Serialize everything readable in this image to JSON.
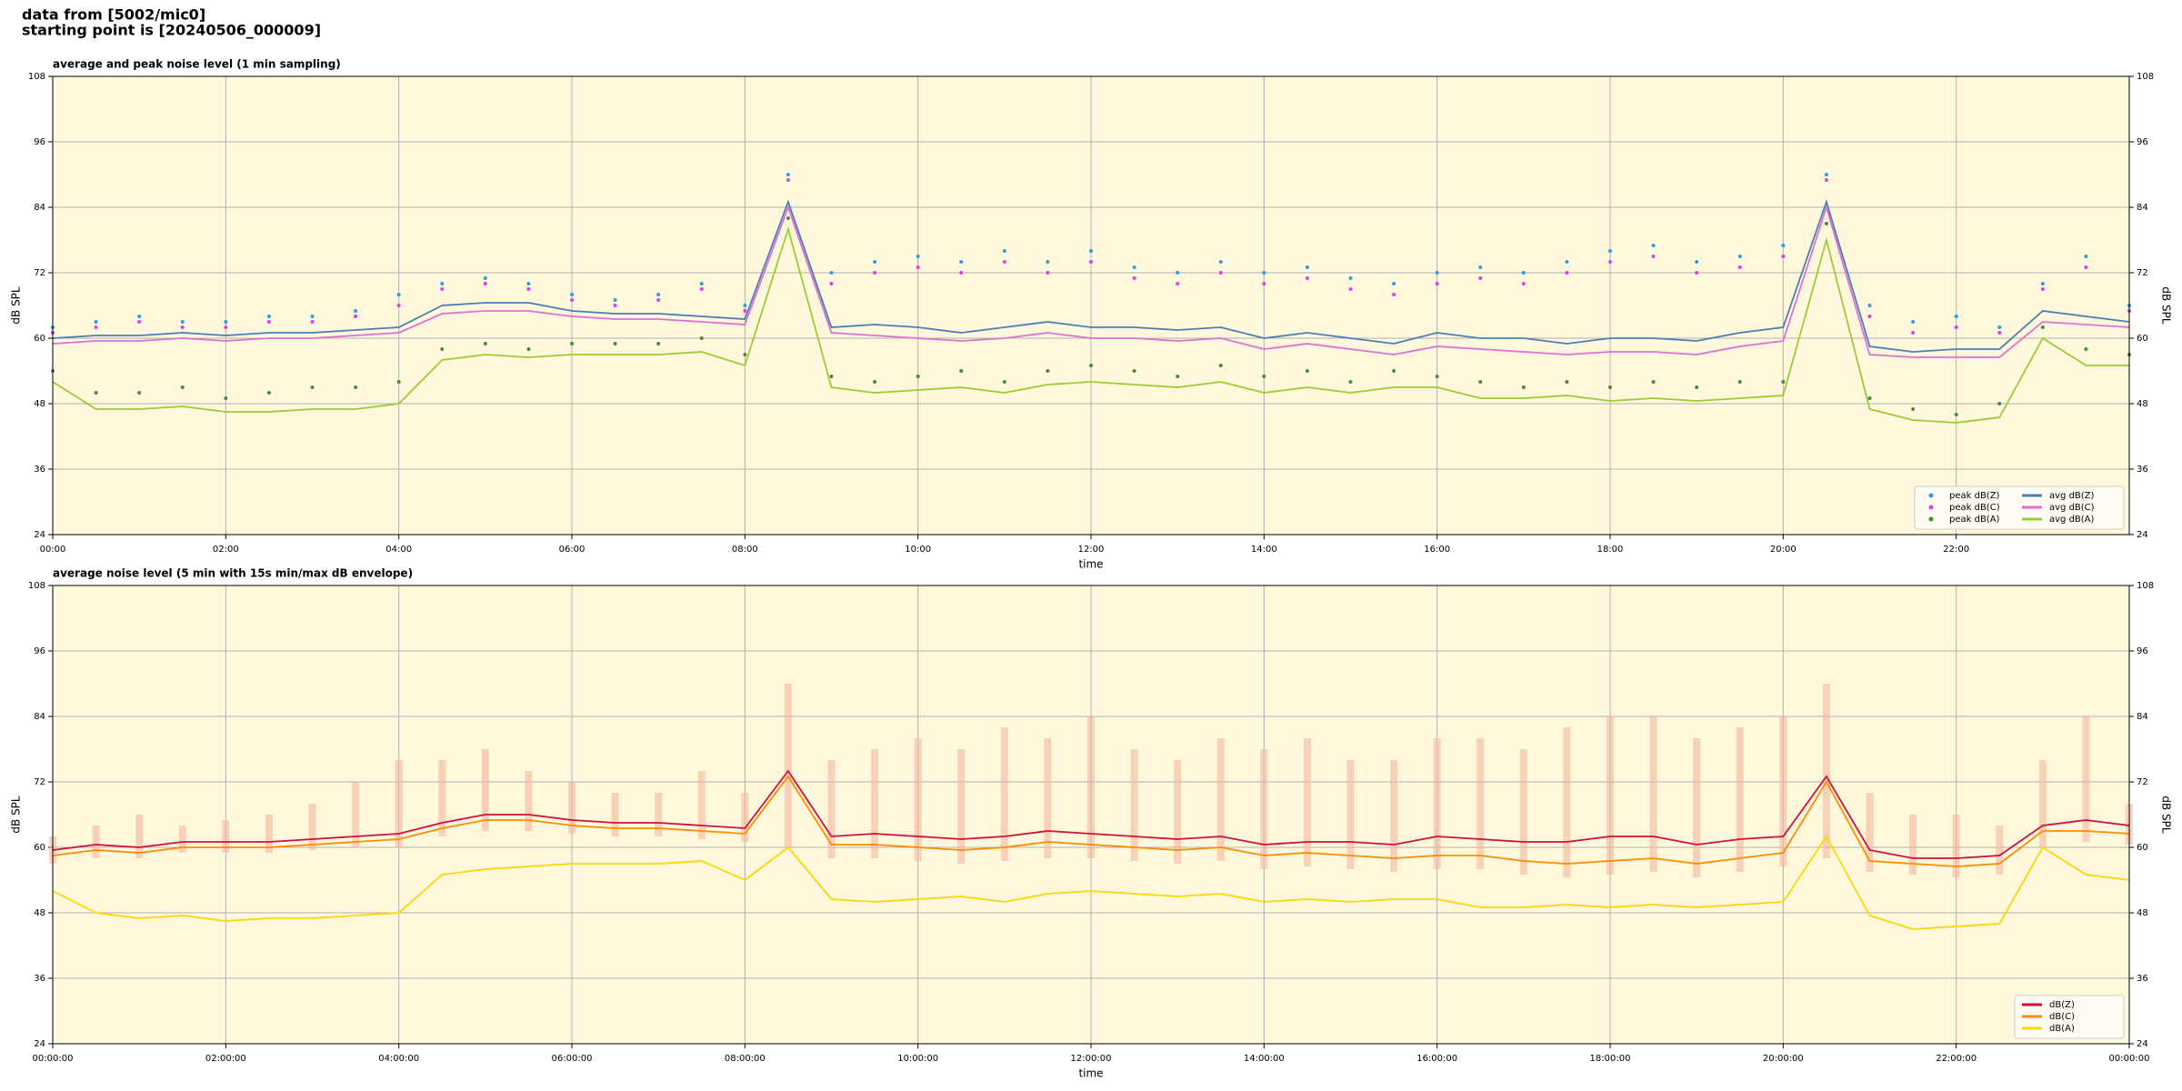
{
  "header": {
    "lines": [
      "data from [5002/mic0]",
      "starting point is [20240506_000009]"
    ]
  },
  "chart_data": [
    {
      "type": "line",
      "title": "average and peak noise level (1 min sampling)",
      "xlabel": "time",
      "ylabel": "dB SPL",
      "xlim": [
        0,
        24
      ],
      "ylim": [
        24,
        108
      ],
      "yticks": [
        24,
        36,
        48,
        60,
        72,
        84,
        96,
        108
      ],
      "xticks": [
        {
          "value": 0,
          "label": "00:00"
        },
        {
          "value": 2,
          "label": "02:00"
        },
        {
          "value": 4,
          "label": "04:00"
        },
        {
          "value": 6,
          "label": "06:00"
        },
        {
          "value": 8,
          "label": "08:00"
        },
        {
          "value": 10,
          "label": "10:00"
        },
        {
          "value": 12,
          "label": "12:00"
        },
        {
          "value": 14,
          "label": "14:00"
        },
        {
          "value": 16,
          "label": "16:00"
        },
        {
          "value": 18,
          "label": "18:00"
        },
        {
          "value": 20,
          "label": "20:00"
        },
        {
          "value": 22,
          "label": "22:00"
        }
      ],
      "grid": true,
      "background": "#fff8dc",
      "legend": "lower right",
      "legend_columns": 2,
      "x": [
        0,
        0.5,
        1,
        1.5,
        2,
        2.5,
        3,
        3.5,
        4,
        4.5,
        5,
        5.5,
        6,
        6.5,
        7,
        7.5,
        8,
        8.5,
        9,
        9.5,
        10,
        10.5,
        11,
        11.5,
        12,
        12.5,
        13,
        13.5,
        14,
        14.5,
        15,
        15.5,
        16,
        16.5,
        17,
        17.5,
        18,
        18.5,
        19,
        19.5,
        20,
        20.5,
        21,
        21.5,
        22,
        22.5,
        23,
        23.5,
        24
      ],
      "series": [
        {
          "name": "peak dB(Z)",
          "kind": "scatter",
          "color": "#2a9fe0",
          "values": [
            62,
            63,
            64,
            63,
            63,
            64,
            64,
            65,
            68,
            70,
            71,
            70,
            68,
            67,
            68,
            70,
            66,
            90,
            72,
            74,
            75,
            74,
            76,
            74,
            76,
            73,
            72,
            74,
            72,
            73,
            71,
            70,
            72,
            73,
            72,
            74,
            76,
            77,
            74,
            75,
            77,
            90,
            66,
            63,
            64,
            62,
            70,
            75,
            66
          ]
        },
        {
          "name": "peak dB(C)",
          "kind": "scatter",
          "color": "#e040e0",
          "values": [
            61,
            62,
            63,
            62,
            62,
            63,
            63,
            64,
            66,
            69,
            70,
            69,
            67,
            66,
            67,
            69,
            65,
            89,
            70,
            72,
            73,
            72,
            74,
            72,
            74,
            71,
            70,
            72,
            70,
            71,
            69,
            68,
            70,
            71,
            70,
            72,
            74,
            75,
            72,
            73,
            75,
            89,
            64,
            61,
            62,
            61,
            69,
            73,
            65
          ]
        },
        {
          "name": "peak dB(A)",
          "kind": "scatter",
          "color": "#4a8a3a",
          "values": [
            54,
            50,
            50,
            51,
            49,
            50,
            51,
            51,
            52,
            58,
            59,
            58,
            59,
            59,
            59,
            60,
            57,
            82,
            53,
            52,
            53,
            54,
            52,
            54,
            55,
            54,
            53,
            55,
            53,
            54,
            52,
            54,
            53,
            52,
            51,
            52,
            51,
            52,
            51,
            52,
            52,
            81,
            49,
            47,
            46,
            48,
            62,
            58,
            57
          ]
        },
        {
          "name": "avg dB(Z)",
          "kind": "line",
          "color": "#4a7fb5",
          "values": [
            60,
            60.5,
            60.5,
            61,
            60.5,
            61,
            61,
            61.5,
            62,
            66,
            66.5,
            66.5,
            65,
            64.5,
            64.5,
            64,
            63.5,
            85,
            62,
            62.5,
            62,
            61,
            62,
            63,
            62,
            62,
            61.5,
            62,
            60,
            61,
            60,
            59,
            61,
            60,
            60,
            59,
            60,
            60,
            59.5,
            61,
            62,
            85,
            58.5,
            57.5,
            58,
            58,
            65,
            64,
            63
          ]
        },
        {
          "name": "avg dB(C)",
          "kind": "line",
          "color": "#e070d0",
          "values": [
            59,
            59.5,
            59.5,
            60,
            59.5,
            60,
            60,
            60.5,
            61,
            64.5,
            65,
            65,
            64,
            63.5,
            63.5,
            63,
            62.5,
            84,
            61,
            60.5,
            60,
            59.5,
            60,
            61,
            60,
            60,
            59.5,
            60,
            58,
            59,
            58,
            57,
            58.5,
            58,
            57.5,
            57,
            57.5,
            57.5,
            57,
            58.5,
            59.5,
            84,
            57,
            56.5,
            56.5,
            56.5,
            63,
            62.5,
            62
          ]
        },
        {
          "name": "avg dB(A)",
          "kind": "line",
          "color": "#9acd32",
          "values": [
            52,
            47,
            47,
            47.5,
            46.5,
            46.5,
            47,
            47,
            48,
            56,
            57,
            56.5,
            57,
            57,
            57,
            57.5,
            55,
            80,
            51,
            50,
            50.5,
            51,
            50,
            51.5,
            52,
            51.5,
            51,
            52,
            50,
            51,
            50,
            51,
            51,
            49,
            49,
            49.5,
            48.5,
            49,
            48.5,
            49,
            49.5,
            78,
            47,
            45,
            44.5,
            45.5,
            60,
            55,
            55
          ]
        }
      ]
    },
    {
      "type": "line",
      "title": "average noise level (5 min with 15s min/max dB envelope)",
      "xlabel": "time",
      "ylabel": "dB SPL",
      "xlim": [
        0,
        24
      ],
      "ylim": [
        24,
        108
      ],
      "yticks": [
        24,
        36,
        48,
        60,
        72,
        84,
        96,
        108
      ],
      "xticks": [
        {
          "value": 0,
          "label": "00:00:00"
        },
        {
          "value": 2,
          "label": "02:00:00"
        },
        {
          "value": 4,
          "label": "04:00:00"
        },
        {
          "value": 6,
          "label": "06:00:00"
        },
        {
          "value": 8,
          "label": "08:00:00"
        },
        {
          "value": 10,
          "label": "10:00:00"
        },
        {
          "value": 12,
          "label": "12:00:00"
        },
        {
          "value": 14,
          "label": "14:00:00"
        },
        {
          "value": 16,
          "label": "16:00:00"
        },
        {
          "value": 18,
          "label": "18:00:00"
        },
        {
          "value": 20,
          "label": "20:00:00"
        },
        {
          "value": 22,
          "label": "22:00:00"
        },
        {
          "value": 24,
          "label": "00:00:00"
        }
      ],
      "grid": true,
      "background": "#fff8dc",
      "legend": "lower right",
      "legend_columns": 1,
      "x": [
        0,
        0.5,
        1,
        1.5,
        2,
        2.5,
        3,
        3.5,
        4,
        4.5,
        5,
        5.5,
        6,
        6.5,
        7,
        7.5,
        8,
        8.5,
        9,
        9.5,
        10,
        10.5,
        11,
        11.5,
        12,
        12.5,
        13,
        13.5,
        14,
        14.5,
        15,
        15.5,
        16,
        16.5,
        17,
        17.5,
        18,
        18.5,
        19,
        19.5,
        20,
        20.5,
        21,
        21.5,
        22,
        22.5,
        23,
        23.5,
        24
      ],
      "envelope": {
        "color": "#f4b8a0",
        "upper": [
          62,
          64,
          66,
          64,
          65,
          66,
          68,
          72,
          76,
          76,
          78,
          74,
          72,
          70,
          70,
          74,
          70,
          90,
          76,
          78,
          80,
          78,
          82,
          80,
          84,
          78,
          76,
          80,
          78,
          80,
          76,
          76,
          80,
          80,
          78,
          82,
          84,
          84,
          80,
          82,
          84,
          90,
          70,
          66,
          66,
          64,
          76,
          84,
          68
        ],
        "lower": [
          57,
          58,
          58,
          59,
          59,
          59,
          59.5,
          60,
          60,
          62,
          63,
          63,
          62.5,
          62,
          62,
          61.5,
          61,
          60,
          58,
          58,
          57.5,
          57,
          57.5,
          58,
          58,
          57.5,
          57,
          57.5,
          56,
          56.5,
          56,
          55.5,
          56,
          56,
          55,
          54.5,
          55,
          55.5,
          54.5,
          55.5,
          56.5,
          58,
          55.5,
          55,
          54.5,
          55,
          60,
          61,
          60.5
        ]
      },
      "series": [
        {
          "name": "dB(Z)",
          "kind": "line",
          "color": "#d0103a",
          "values": [
            59.5,
            60.5,
            60,
            61,
            61,
            61,
            61.5,
            62,
            62.5,
            64.5,
            66,
            66,
            65,
            64.5,
            64.5,
            64,
            63.5,
            74,
            62,
            62.5,
            62,
            61.5,
            62,
            63,
            62.5,
            62,
            61.5,
            62,
            60.5,
            61,
            61,
            60.5,
            62,
            61.5,
            61,
            61,
            62,
            62,
            60.5,
            61.5,
            62,
            73,
            59.5,
            58,
            58,
            58.5,
            64,
            65,
            64
          ]
        },
        {
          "name": "dB(C)",
          "kind": "line",
          "color": "#ff8c00",
          "values": [
            58.5,
            59.5,
            59,
            60,
            60,
            60,
            60.5,
            61,
            61.5,
            63.5,
            65,
            65,
            64,
            63.5,
            63.5,
            63,
            62.5,
            73,
            60.5,
            60.5,
            60,
            59.5,
            60,
            61,
            60.5,
            60,
            59.5,
            60,
            58.5,
            59,
            58.5,
            58,
            58.5,
            58.5,
            57.5,
            57,
            57.5,
            58,
            57,
            58,
            59,
            72,
            57.5,
            57,
            56.5,
            57,
            63,
            63,
            62.5
          ]
        },
        {
          "name": "dB(A)",
          "kind": "line",
          "color": "#ffd700",
          "values": [
            52,
            48,
            47,
            47.5,
            46.5,
            47,
            47,
            47.5,
            48,
            55,
            56,
            56.5,
            57,
            57,
            57,
            57.5,
            54,
            60,
            50.5,
            50,
            50.5,
            51,
            50,
            51.5,
            52,
            51.5,
            51,
            51.5,
            50,
            50.5,
            50,
            50.5,
            50.5,
            49,
            49,
            49.5,
            49,
            49.5,
            49,
            49.5,
            50,
            62,
            47.5,
            45,
            45.5,
            46,
            60,
            55,
            54
          ]
        }
      ]
    }
  ]
}
